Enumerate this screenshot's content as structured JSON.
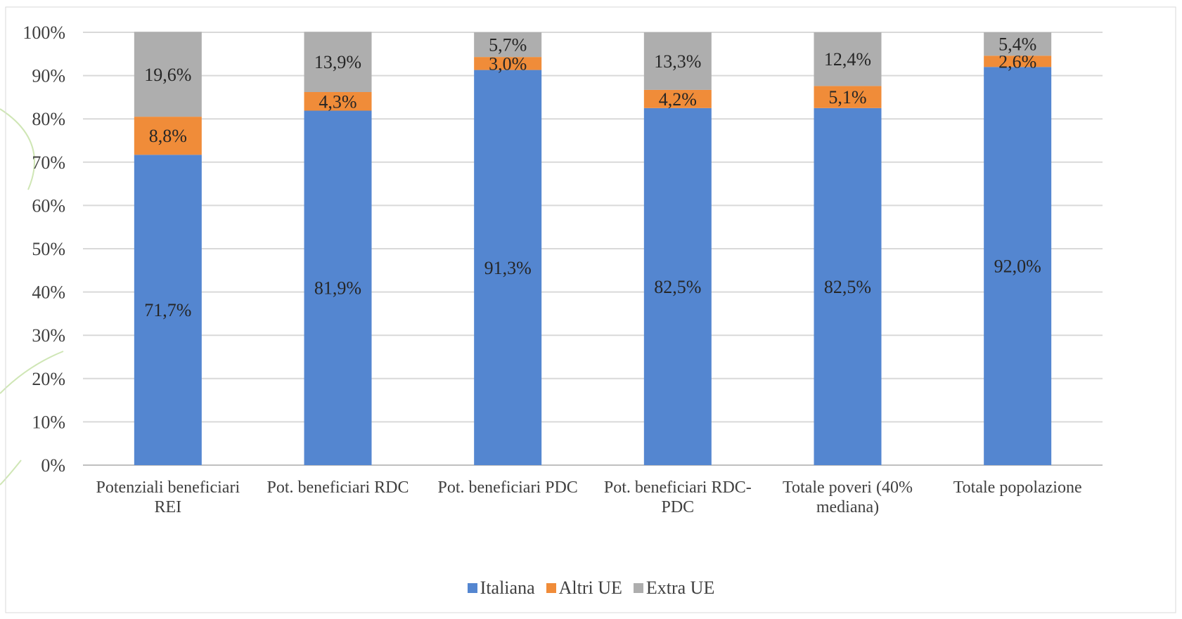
{
  "chart_data": {
    "type": "bar",
    "stacked": true,
    "categories": [
      "Potenziali beneficiari REI",
      "Pot. beneficiari RDC",
      "Pot. beneficiari PDC",
      "Pot. beneficiari RDC-PDC",
      "Totale poveri (40% mediana)",
      "Totale popolazione"
    ],
    "series": [
      {
        "name": "Italiana",
        "color": "#5486D0",
        "values": [
          71.7,
          81.9,
          91.3,
          82.5,
          82.5,
          92.0
        ],
        "labels": [
          "71,7%",
          "81,9%",
          "91,3%",
          "82,5%",
          "82,5%",
          "92,0%"
        ]
      },
      {
        "name": "Altri UE",
        "color": "#F08C39",
        "values": [
          8.8,
          4.3,
          3.0,
          4.2,
          5.1,
          2.6
        ],
        "labels": [
          "8,8%",
          "4,3%",
          "3,0%",
          "4,2%",
          "5,1%",
          "2,6%"
        ]
      },
      {
        "name": "Extra UE",
        "color": "#AEAEAE",
        "values": [
          19.6,
          13.9,
          5.7,
          13.3,
          12.4,
          5.4
        ],
        "labels": [
          "19,6%",
          "13,9%",
          "5,7%",
          "13,3%",
          "12,4%",
          "5,4%"
        ]
      }
    ],
    "ylim": [
      0,
      100
    ],
    "yticks": [
      "0%",
      "10%",
      "20%",
      "30%",
      "40%",
      "50%",
      "60%",
      "70%",
      "80%",
      "90%",
      "100%"
    ],
    "grid": true,
    "legend_position": "bottom"
  }
}
